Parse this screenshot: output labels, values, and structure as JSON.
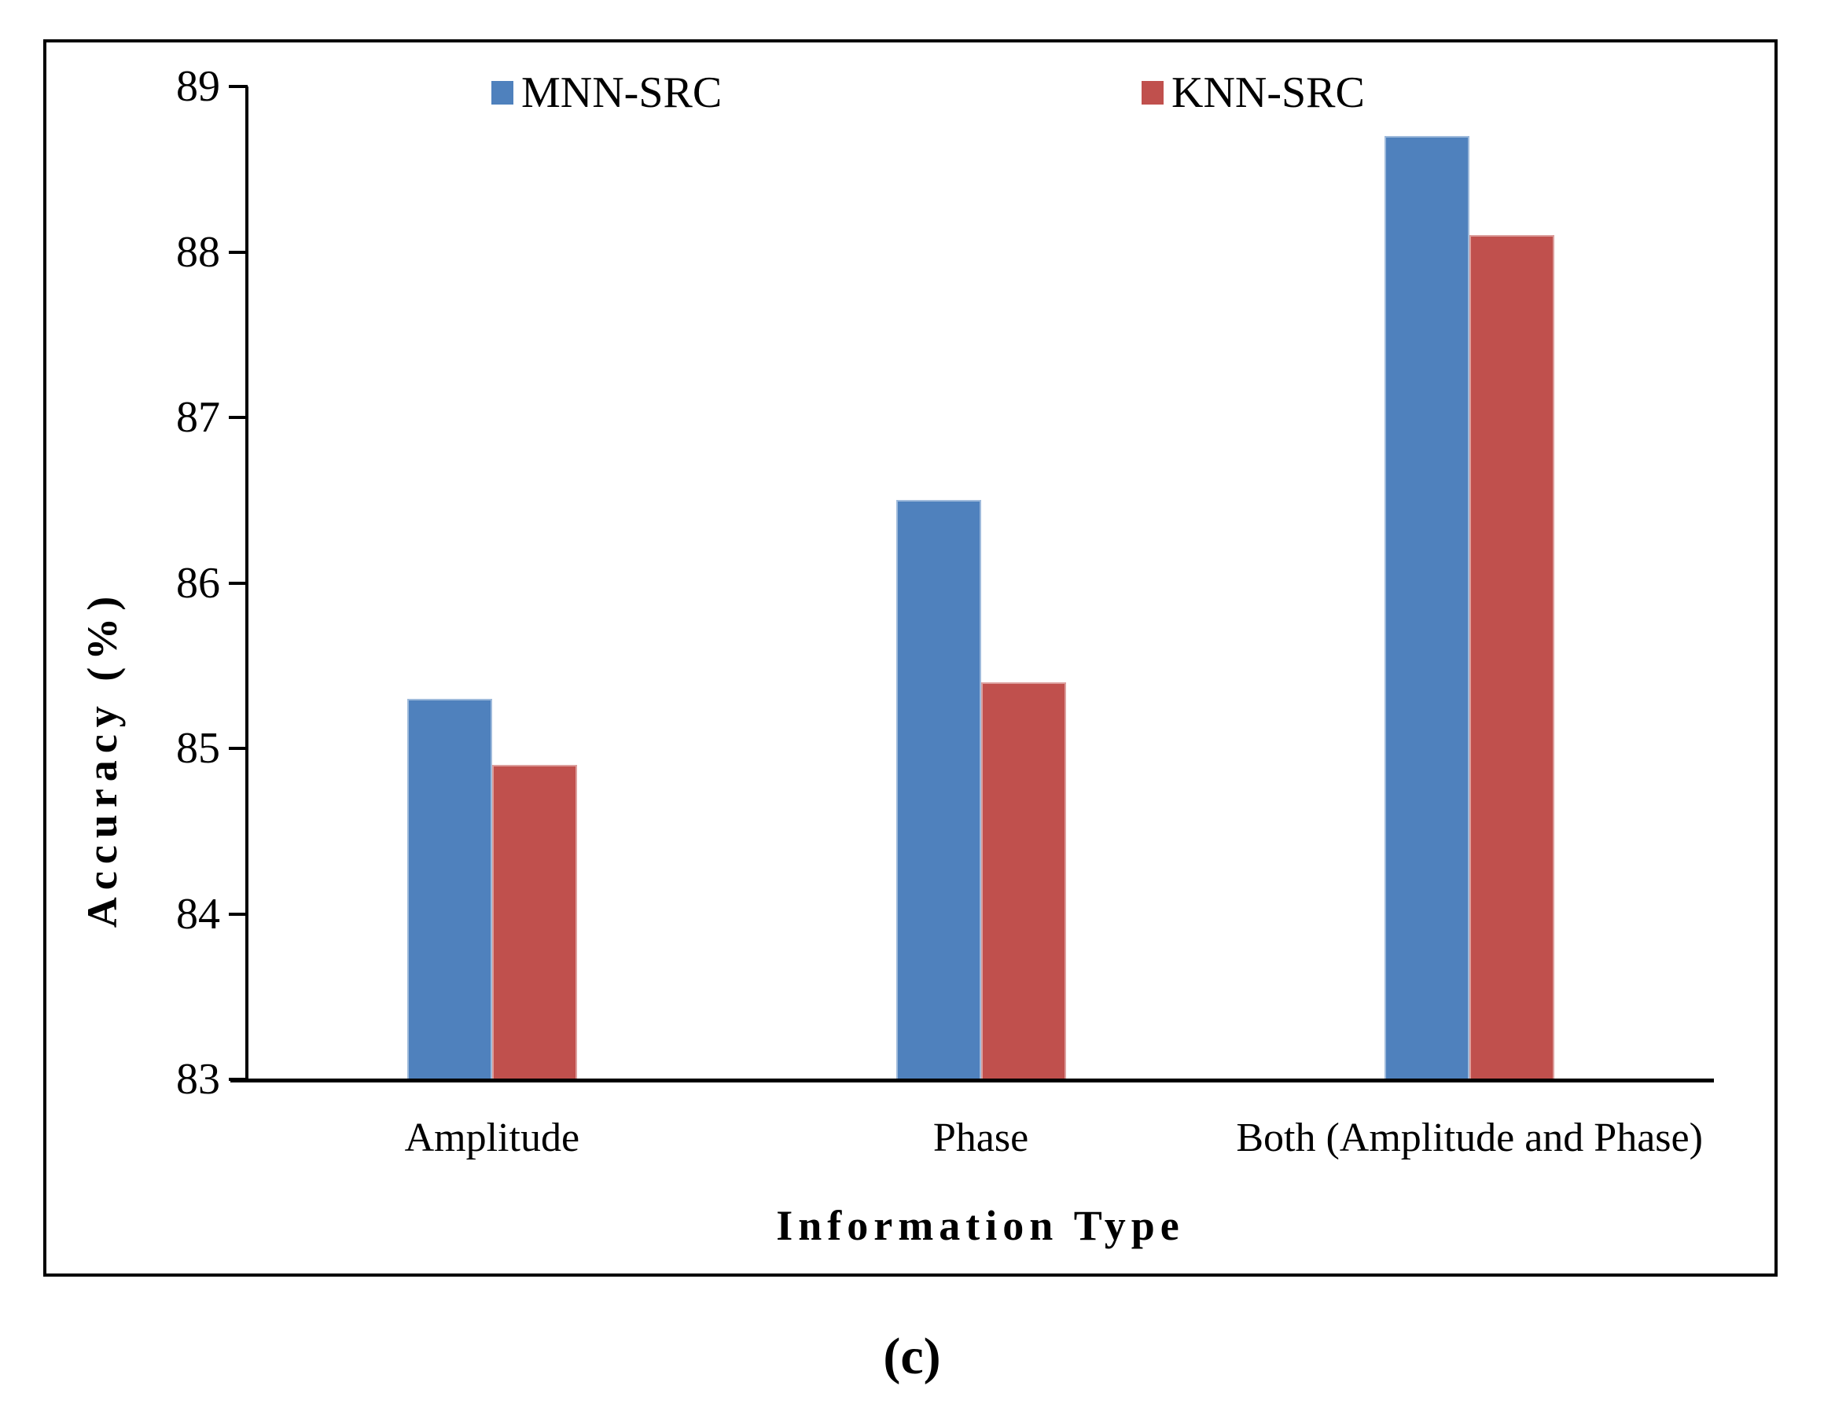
{
  "figure": {
    "caption": "(c)"
  },
  "chart_data": {
    "type": "bar",
    "title": "",
    "categories": [
      "Amplitude",
      "Phase",
      "Both (Amplitude and Phase)"
    ],
    "series": [
      {
        "name": "MNN-SRC",
        "color": "#4F81BD",
        "values": [
          85.3,
          86.5,
          88.7
        ]
      },
      {
        "name": "KNN-SRC",
        "color": "#C0504D",
        "values": [
          84.9,
          85.4,
          88.1
        ]
      }
    ],
    "xlabel": "Information Type",
    "ylabel": "Accuracy  (%)",
    "ylim": [
      83,
      89
    ],
    "yticks": [
      83,
      84,
      85,
      86,
      87,
      88,
      89
    ],
    "legend_position": "top-inside",
    "grid": false
  }
}
